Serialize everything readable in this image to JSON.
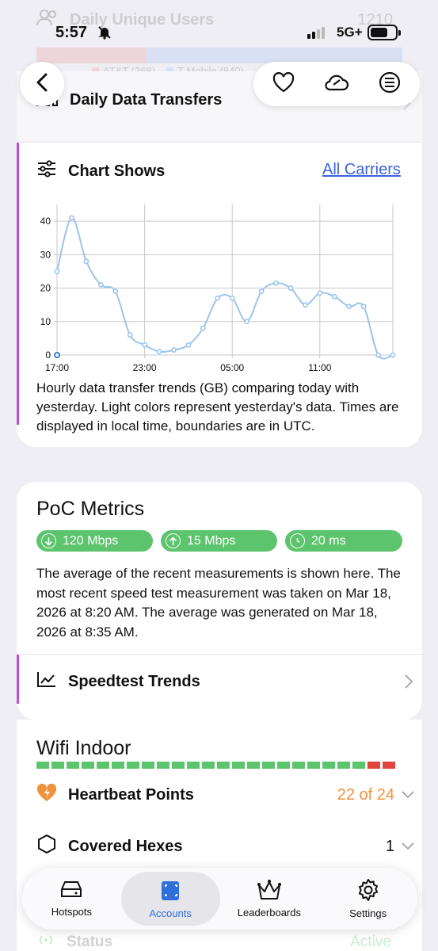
{
  "status_bar": {
    "time": "5:57",
    "network": "5G+"
  },
  "ghost_top": {
    "title": "Daily Unique Users",
    "value": "1210",
    "legend": [
      {
        "label": "AT&T (368)",
        "color": "#e9a3ad"
      },
      {
        "label": "T-Mobile (840)",
        "color": "#a7c6f2"
      }
    ]
  },
  "header": {
    "section_title": "Daily Data Transfers"
  },
  "chart_section": {
    "title": "Chart Shows",
    "filter_link": "All Carriers",
    "caption": "Hourly data transfer trends (GB) comparing today with yesterday. Light colors represent yesterday's data. Times are displayed in local time, boundaries are in UTC."
  },
  "chart_data": {
    "type": "line",
    "xlabel": "",
    "ylabel": "",
    "ylim": [
      0,
      45
    ],
    "x_ticks": [
      "17:00",
      "23:00",
      "05:00",
      "11:00"
    ],
    "y_ticks": [
      "0",
      "10",
      "20",
      "30",
      "40"
    ],
    "grid": true,
    "series": [
      {
        "color": "#9cc5ea",
        "values": [
          25,
          41,
          28,
          21,
          19,
          6,
          3,
          1,
          1.5,
          3,
          8,
          17,
          17,
          10,
          19,
          21.5,
          20,
          15,
          18.5,
          17.5,
          14.5,
          14.5,
          0,
          0
        ]
      },
      {
        "color": "#3a7bd5",
        "values": [
          0
        ]
      }
    ]
  },
  "poc": {
    "title": "PoC Metrics",
    "download": "120 Mbps",
    "upload": "15 Mbps",
    "latency": "20 ms",
    "description": "The average of the recent measurements is shown here. The most recent speed test measurement was taken on Mar 18, 2026 at 8:20 AM. The average was generated on Mar 18, 2026 at 8:35 AM.",
    "speedtest_label": "Speedtest Trends"
  },
  "wifi": {
    "title": "Wifi Indoor",
    "segments_good": 22,
    "segments_total": 24,
    "good_color": "#5cc46c",
    "bad_color": "#e0453f",
    "heartbeat_label": "Heartbeat Points",
    "heartbeat_value": "22 of 24",
    "heartbeat_color": "#f0913c",
    "hexes_label": "Covered Hexes",
    "hexes_value": "1",
    "status_label": "Status",
    "status_value": "Active"
  },
  "tabs": [
    {
      "label": "Hotspots",
      "active": false
    },
    {
      "label": "Accounts",
      "active": true
    },
    {
      "label": "Leaderboards",
      "active": false
    },
    {
      "label": "Settings",
      "active": false
    }
  ]
}
